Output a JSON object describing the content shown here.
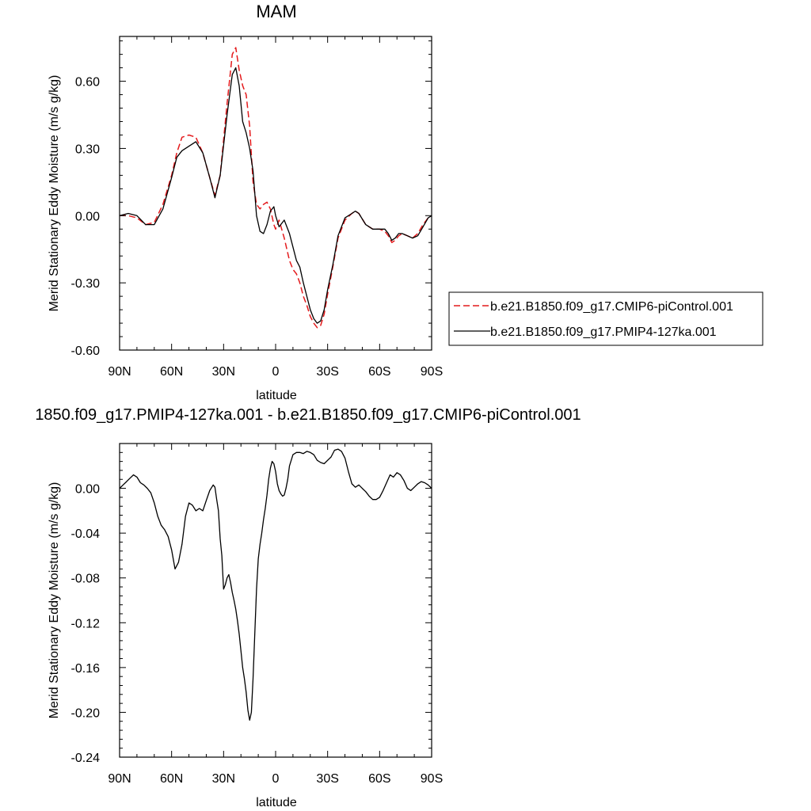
{
  "chart_data": [
    {
      "type": "line",
      "title": "MAM",
      "xlabel": "latitude",
      "ylabel": "Merid Stationary Eddy Moisture (m/s g/kg)",
      "xlim": [
        90,
        -90
      ],
      "ylim": [
        -0.6,
        0.8
      ],
      "x_ticks": [
        90,
        60,
        30,
        0,
        -30,
        -60,
        -90
      ],
      "x_tick_labels": [
        "90N",
        "60N",
        "30N",
        "0",
        "30S",
        "60S",
        "90S"
      ],
      "y_ticks": [
        -0.6,
        -0.3,
        0.0,
        0.3,
        0.6
      ],
      "y_tick_labels": [
        "-0.60",
        "-0.30",
        "0.00",
        "0.30",
        "0.60"
      ],
      "legend_position": "right",
      "series": [
        {
          "name": "b.e21.B1850.f09_g17.CMIP6-piControl.001",
          "color": "#e41a1c",
          "dash": "dashed",
          "x": [
            90,
            85,
            80,
            75,
            70,
            65,
            60,
            57,
            54,
            50,
            46,
            42,
            38,
            35,
            32,
            28,
            25,
            23,
            21,
            19,
            17,
            15,
            13,
            11,
            9,
            7,
            5,
            3,
            1,
            0,
            -2,
            -5,
            -8,
            -10,
            -12,
            -14,
            -16,
            -18,
            -20,
            -22,
            -24,
            -26,
            -28,
            -30,
            -33,
            -36,
            -40,
            -44,
            -46,
            -48,
            -52,
            -56,
            -60,
            -63,
            -65,
            -67,
            -69,
            -71,
            -73,
            -76,
            -79,
            -82,
            -85,
            -88,
            -90
          ],
          "y": [
            0.0,
            0.0,
            -0.01,
            -0.04,
            -0.03,
            0.05,
            0.18,
            0.28,
            0.35,
            0.36,
            0.35,
            0.28,
            0.17,
            0.09,
            0.18,
            0.5,
            0.72,
            0.75,
            0.65,
            0.58,
            0.54,
            0.4,
            0.15,
            0.05,
            0.03,
            0.05,
            0.06,
            0.03,
            -0.04,
            -0.06,
            -0.02,
            -0.1,
            -0.2,
            -0.24,
            -0.26,
            -0.3,
            -0.36,
            -0.4,
            -0.45,
            -0.48,
            -0.5,
            -0.49,
            -0.44,
            -0.35,
            -0.23,
            -0.1,
            -0.02,
            0.01,
            0.02,
            0.01,
            -0.04,
            -0.06,
            -0.06,
            -0.07,
            -0.09,
            -0.12,
            -0.11,
            -0.09,
            -0.08,
            -0.09,
            -0.1,
            -0.08,
            -0.04,
            -0.01,
            0.0
          ]
        },
        {
          "name": "b.e21.B1850.f09_g17.PMIP4-127ka.001",
          "color": "#000000",
          "dash": "solid",
          "x": [
            90,
            85,
            80,
            75,
            70,
            65,
            60,
            57,
            54,
            50,
            46,
            42,
            38,
            35,
            32,
            28,
            25,
            23,
            21,
            19,
            17,
            15,
            13,
            11,
            9,
            7,
            5,
            3,
            1,
            0,
            -2,
            -5,
            -8,
            -10,
            -12,
            -14,
            -16,
            -18,
            -20,
            -22,
            -24,
            -26,
            -28,
            -30,
            -33,
            -36,
            -40,
            -44,
            -46,
            -48,
            -52,
            -56,
            -60,
            -63,
            -65,
            -67,
            -69,
            -71,
            -73,
            -76,
            -79,
            -82,
            -85,
            -88,
            -90
          ],
          "y": [
            0.0,
            0.01,
            0.0,
            -0.04,
            -0.04,
            0.03,
            0.17,
            0.26,
            0.29,
            0.31,
            0.33,
            0.28,
            0.17,
            0.08,
            0.18,
            0.45,
            0.63,
            0.66,
            0.58,
            0.42,
            0.37,
            0.3,
            0.2,
            0.0,
            -0.07,
            -0.08,
            -0.04,
            0.02,
            0.04,
            0.0,
            -0.05,
            -0.02,
            -0.08,
            -0.14,
            -0.2,
            -0.23,
            -0.3,
            -0.36,
            -0.42,
            -0.46,
            -0.48,
            -0.47,
            -0.42,
            -0.33,
            -0.22,
            -0.09,
            -0.01,
            0.01,
            0.02,
            0.01,
            -0.04,
            -0.06,
            -0.06,
            -0.06,
            -0.08,
            -0.11,
            -0.1,
            -0.08,
            -0.08,
            -0.09,
            -0.1,
            -0.09,
            -0.05,
            -0.01,
            0.0
          ]
        }
      ]
    },
    {
      "type": "line",
      "title": "1850.f09_g17.PMIP4-127ka.001 - b.e21.B1850.f09_g17.CMIP6-piControl.001",
      "xlabel": "latitude",
      "ylabel": "Merid Stationary Eddy Moisture (m/s g/kg)",
      "xlim": [
        90,
        -90
      ],
      "ylim": [
        -0.24,
        0.04
      ],
      "x_ticks": [
        90,
        60,
        30,
        0,
        -30,
        -60,
        -90
      ],
      "x_tick_labels": [
        "90N",
        "60N",
        "30N",
        "0",
        "30S",
        "60S",
        "90S"
      ],
      "y_ticks": [
        -0.24,
        -0.2,
        -0.16,
        -0.12,
        -0.08,
        -0.04,
        0.0
      ],
      "y_tick_labels": [
        "-0.24",
        "-0.20",
        "-0.16",
        "-0.12",
        "-0.08",
        "-0.04",
        "0.00"
      ],
      "series": [
        {
          "color": "#000000",
          "dash": "solid",
          "x": [
            90,
            88,
            86,
            84,
            82,
            80,
            78,
            76,
            74,
            72,
            70,
            68,
            66,
            64,
            62,
            60,
            58,
            56,
            54,
            52,
            50,
            48,
            46,
            44,
            42,
            40,
            38,
            36,
            35,
            34,
            33,
            32,
            31,
            30,
            29,
            28,
            27,
            26,
            25,
            24,
            23,
            22,
            21,
            20,
            19,
            18,
            17,
            16,
            15,
            14,
            13,
            12,
            11,
            10,
            9,
            8,
            7,
            6,
            5,
            4,
            3,
            2,
            1,
            0,
            -1,
            -2,
            -3,
            -4,
            -5,
            -6,
            -7,
            -8,
            -10,
            -12,
            -14,
            -16,
            -18,
            -20,
            -22,
            -24,
            -26,
            -28,
            -30,
            -32,
            -34,
            -36,
            -38,
            -40,
            -42,
            -44,
            -46,
            -48,
            -50,
            -52,
            -54,
            -56,
            -58,
            -60,
            -62,
            -64,
            -66,
            -68,
            -70,
            -72,
            -74,
            -76,
            -78,
            -80,
            -82,
            -84,
            -86,
            -88,
            -90
          ],
          "y": [
            0.0,
            0.003,
            0.006,
            0.009,
            0.012,
            0.01,
            0.005,
            0.003,
            0.0,
            -0.004,
            -0.013,
            -0.025,
            -0.033,
            -0.037,
            -0.043,
            -0.055,
            -0.072,
            -0.066,
            -0.05,
            -0.025,
            -0.013,
            -0.015,
            -0.02,
            -0.018,
            -0.02,
            -0.011,
            -0.002,
            0.003,
            0.001,
            -0.01,
            -0.02,
            -0.045,
            -0.06,
            -0.09,
            -0.086,
            -0.08,
            -0.077,
            -0.084,
            -0.093,
            -0.1,
            -0.108,
            -0.118,
            -0.13,
            -0.145,
            -0.16,
            -0.17,
            -0.182,
            -0.198,
            -0.207,
            -0.2,
            -0.17,
            -0.13,
            -0.09,
            -0.063,
            -0.05,
            -0.04,
            -0.028,
            -0.018,
            -0.006,
            0.008,
            0.018,
            0.024,
            0.022,
            0.015,
            0.004,
            -0.002,
            -0.005,
            -0.007,
            -0.006,
            0.0,
            0.008,
            0.02,
            0.03,
            0.032,
            0.032,
            0.031,
            0.033,
            0.032,
            0.03,
            0.025,
            0.023,
            0.022,
            0.025,
            0.028,
            0.034,
            0.035,
            0.033,
            0.027,
            0.015,
            0.004,
            0.001,
            0.003,
            0.0,
            -0.003,
            -0.007,
            -0.01,
            -0.01,
            -0.008,
            -0.002,
            0.005,
            0.012,
            0.01,
            0.014,
            0.012,
            0.007,
            0.0,
            -0.002,
            0.001,
            0.004,
            0.006,
            0.005,
            0.003,
            0.0
          ]
        }
      ]
    }
  ]
}
